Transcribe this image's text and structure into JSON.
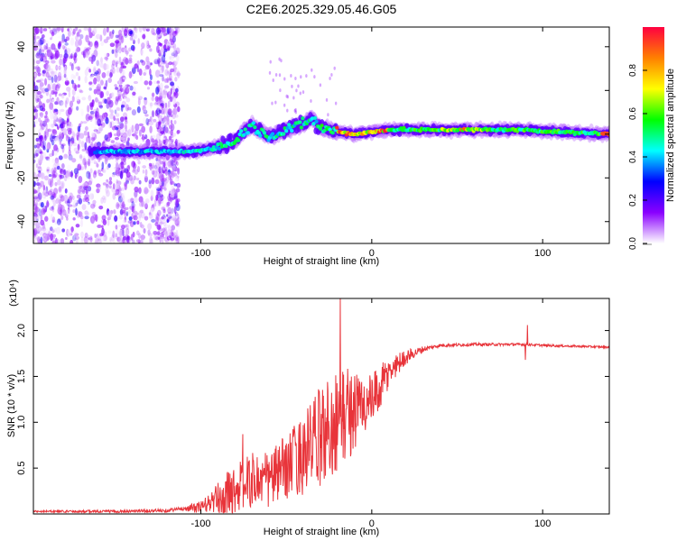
{
  "page": {
    "title": "C2E6.2025.329.05.46.G05"
  },
  "chart_data": [
    {
      "type": "heatmap",
      "title": "C2E6.2025.329.05.46.G05",
      "xlabel": "Height of straight line (km)",
      "ylabel": "Frequency (Hz)",
      "xlim": [
        -198,
        139
      ],
      "ylim": [
        -50,
        49
      ],
      "x_ticks": [
        -100,
        0,
        100
      ],
      "x_tick_labels": [
        "-100",
        "0",
        "100"
      ],
      "y_ticks": [
        -40,
        -20,
        0,
        20,
        40
      ],
      "y_tick_labels": [
        "-40",
        "-20",
        "0",
        "20",
        "40"
      ],
      "colorbar": {
        "label": "Normalized spectral amplitude",
        "range": [
          0,
          1
        ],
        "ticks": [
          0.0,
          0.2,
          0.4,
          0.6,
          0.8
        ],
        "tick_labels": [
          "0.0",
          "0.2",
          "0.4",
          "0.6",
          "0.8"
        ],
        "colormap": [
          "#ffffff",
          "#8a00ff",
          "#0000ff",
          "#00ffff",
          "#00ff00",
          "#ffff00",
          "#ff8000",
          "#ff0040"
        ]
      },
      "ridge": {
        "points": [
          [
            -160,
            -8
          ],
          [
            -140,
            -8
          ],
          [
            -120,
            -8
          ],
          [
            -105,
            -8
          ],
          [
            -90,
            -6
          ],
          [
            -80,
            -3
          ],
          [
            -75,
            1
          ],
          [
            -70,
            4
          ],
          [
            -65,
            1
          ],
          [
            -60,
            -1
          ],
          [
            -50,
            2
          ],
          [
            -40,
            5
          ],
          [
            -35,
            7
          ],
          [
            -30,
            3
          ],
          [
            -25,
            2
          ],
          [
            -20,
            1
          ],
          [
            -10,
            0
          ],
          [
            0,
            1
          ],
          [
            10,
            2
          ],
          [
            30,
            2
          ],
          [
            50,
            2
          ],
          [
            70,
            2
          ],
          [
            90,
            2
          ],
          [
            110,
            1
          ],
          [
            139,
            0
          ]
        ],
        "amplitude_note": "strongest near -15 to 10 km and near 55 km"
      }
    },
    {
      "type": "line",
      "xlabel": "Height of straight line (km)",
      "ylabel": "SNR (10 * v/v)",
      "y_multiplier_label": "(x10⁴)",
      "xlim": [
        -198,
        139
      ],
      "ylim": [
        0,
        2.35
      ],
      "x_ticks": [
        -100,
        0,
        100
      ],
      "x_tick_labels": [
        "-100",
        "0",
        "100"
      ],
      "y_ticks": [
        0.5,
        1.0,
        1.5,
        2.0
      ],
      "y_tick_labels": [
        "0.5",
        "1.0",
        "1.5",
        "2.0"
      ],
      "series": [
        {
          "name": "SNR",
          "color": "#e8343a",
          "envelope": [
            [
              -198,
              0.03
            ],
            [
              -150,
              0.03
            ],
            [
              -120,
              0.04
            ],
            [
              -100,
              0.08
            ],
            [
              -90,
              0.18
            ],
            [
              -80,
              0.3
            ],
            [
              -70,
              0.4
            ],
            [
              -60,
              0.4
            ],
            [
              -50,
              0.55
            ],
            [
              -40,
              0.7
            ],
            [
              -30,
              0.9
            ],
            [
              -22,
              1.05
            ],
            [
              -15,
              1.15
            ],
            [
              -8,
              1.2
            ],
            [
              0,
              1.25
            ],
            [
              5,
              1.4
            ],
            [
              10,
              1.55
            ],
            [
              15,
              1.65
            ],
            [
              20,
              1.72
            ],
            [
              30,
              1.8
            ],
            [
              40,
              1.84
            ],
            [
              60,
              1.85
            ],
            [
              80,
              1.85
            ],
            [
              90,
              1.85
            ],
            [
              100,
              1.84
            ],
            [
              139,
              1.82
            ]
          ],
          "noise_amplitude": [
            [
              -198,
              0.01
            ],
            [
              -110,
              0.02
            ],
            [
              -95,
              0.1
            ],
            [
              -85,
              0.25
            ],
            [
              -70,
              0.3
            ],
            [
              -50,
              0.35
            ],
            [
              -35,
              0.5
            ],
            [
              -25,
              0.6
            ],
            [
              -15,
              0.55
            ],
            [
              -5,
              0.35
            ],
            [
              5,
              0.25
            ],
            [
              15,
              0.12
            ],
            [
              25,
              0.05
            ],
            [
              35,
              0.02
            ],
            [
              70,
              0.015
            ],
            [
              139,
              0.01
            ]
          ],
          "spikes": [
            [
              -75.5,
              0.87
            ],
            [
              -58.5,
              0.65
            ],
            [
              -34,
              0.88
            ],
            [
              -22.5,
              1.2
            ],
            [
              -18.5,
              2.35
            ],
            [
              -17,
              1.55
            ],
            [
              -13,
              1.25
            ],
            [
              -5,
              1.22
            ],
            [
              90,
              1.68
            ],
            [
              91,
              2.06
            ]
          ]
        }
      ]
    }
  ]
}
